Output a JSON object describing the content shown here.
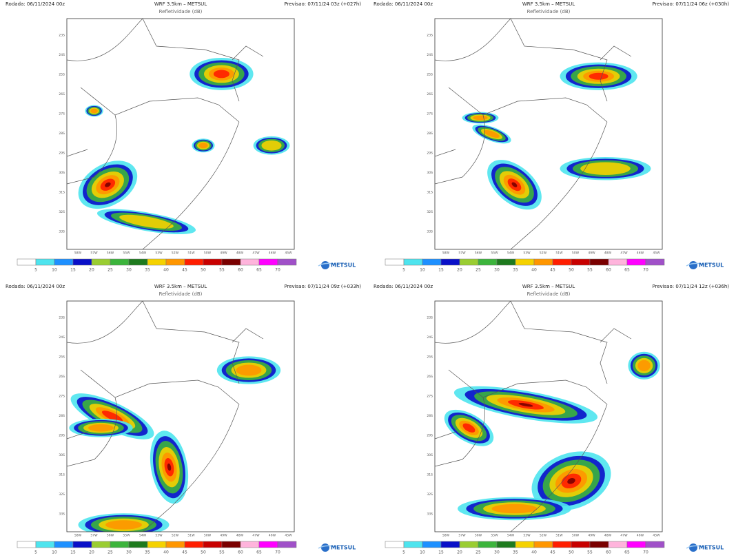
{
  "panels": [
    {
      "run": "Rodada: 06/11/2024 00z",
      "model": "WRF 3.5km – METSUL",
      "variable": "Refletividade (dB)",
      "forecast": "Previsao: 07/11/24 03z (+027h)"
    },
    {
      "run": "Rodada: 06/11/2024 00z",
      "model": "WRF 3.5km – METSUL",
      "variable": "Refletividade (dB)",
      "forecast": "Previsao: 07/11/24 06z (+030h)"
    },
    {
      "run": "Rodada: 06/11/2024 00z",
      "model": "WRF 3.5km – METSUL",
      "variable": "Refletividade (dB)",
      "forecast": "Previsao: 07/11/24 09z (+033h)"
    },
    {
      "run": "Rodada: 06/11/2024 00z",
      "model": "WRF 3.5km – METSUL",
      "variable": "Refletividade (dB)",
      "forecast": "Previsao: 07/11/24 12z (+036h)"
    }
  ],
  "lat_labels": [
    "23S",
    "24S",
    "25S",
    "26S",
    "27S",
    "28S",
    "29S",
    "30S",
    "31S",
    "32S",
    "33S"
  ],
  "lon_labels": [
    "58W",
    "57W",
    "56W",
    "55W",
    "54W",
    "53W",
    "52W",
    "51W",
    "50W",
    "49W",
    "48W",
    "47W",
    "46W",
    "45W"
  ],
  "colorbar": {
    "levels": [
      5,
      10,
      15,
      20,
      25,
      30,
      35,
      40,
      45,
      50,
      55,
      60,
      65,
      70
    ],
    "colors": [
      "#ffffff",
      "#4ee4ee",
      "#1e90ff",
      "#0a10c8",
      "#9acd32",
      "#3cb43c",
      "#1e7a1e",
      "#f5d200",
      "#ff9600",
      "#ff1e00",
      "#c80000",
      "#7a0000",
      "#ffb4dc",
      "#ff00ff",
      "#a050c8"
    ]
  },
  "logo": "METSUL"
}
